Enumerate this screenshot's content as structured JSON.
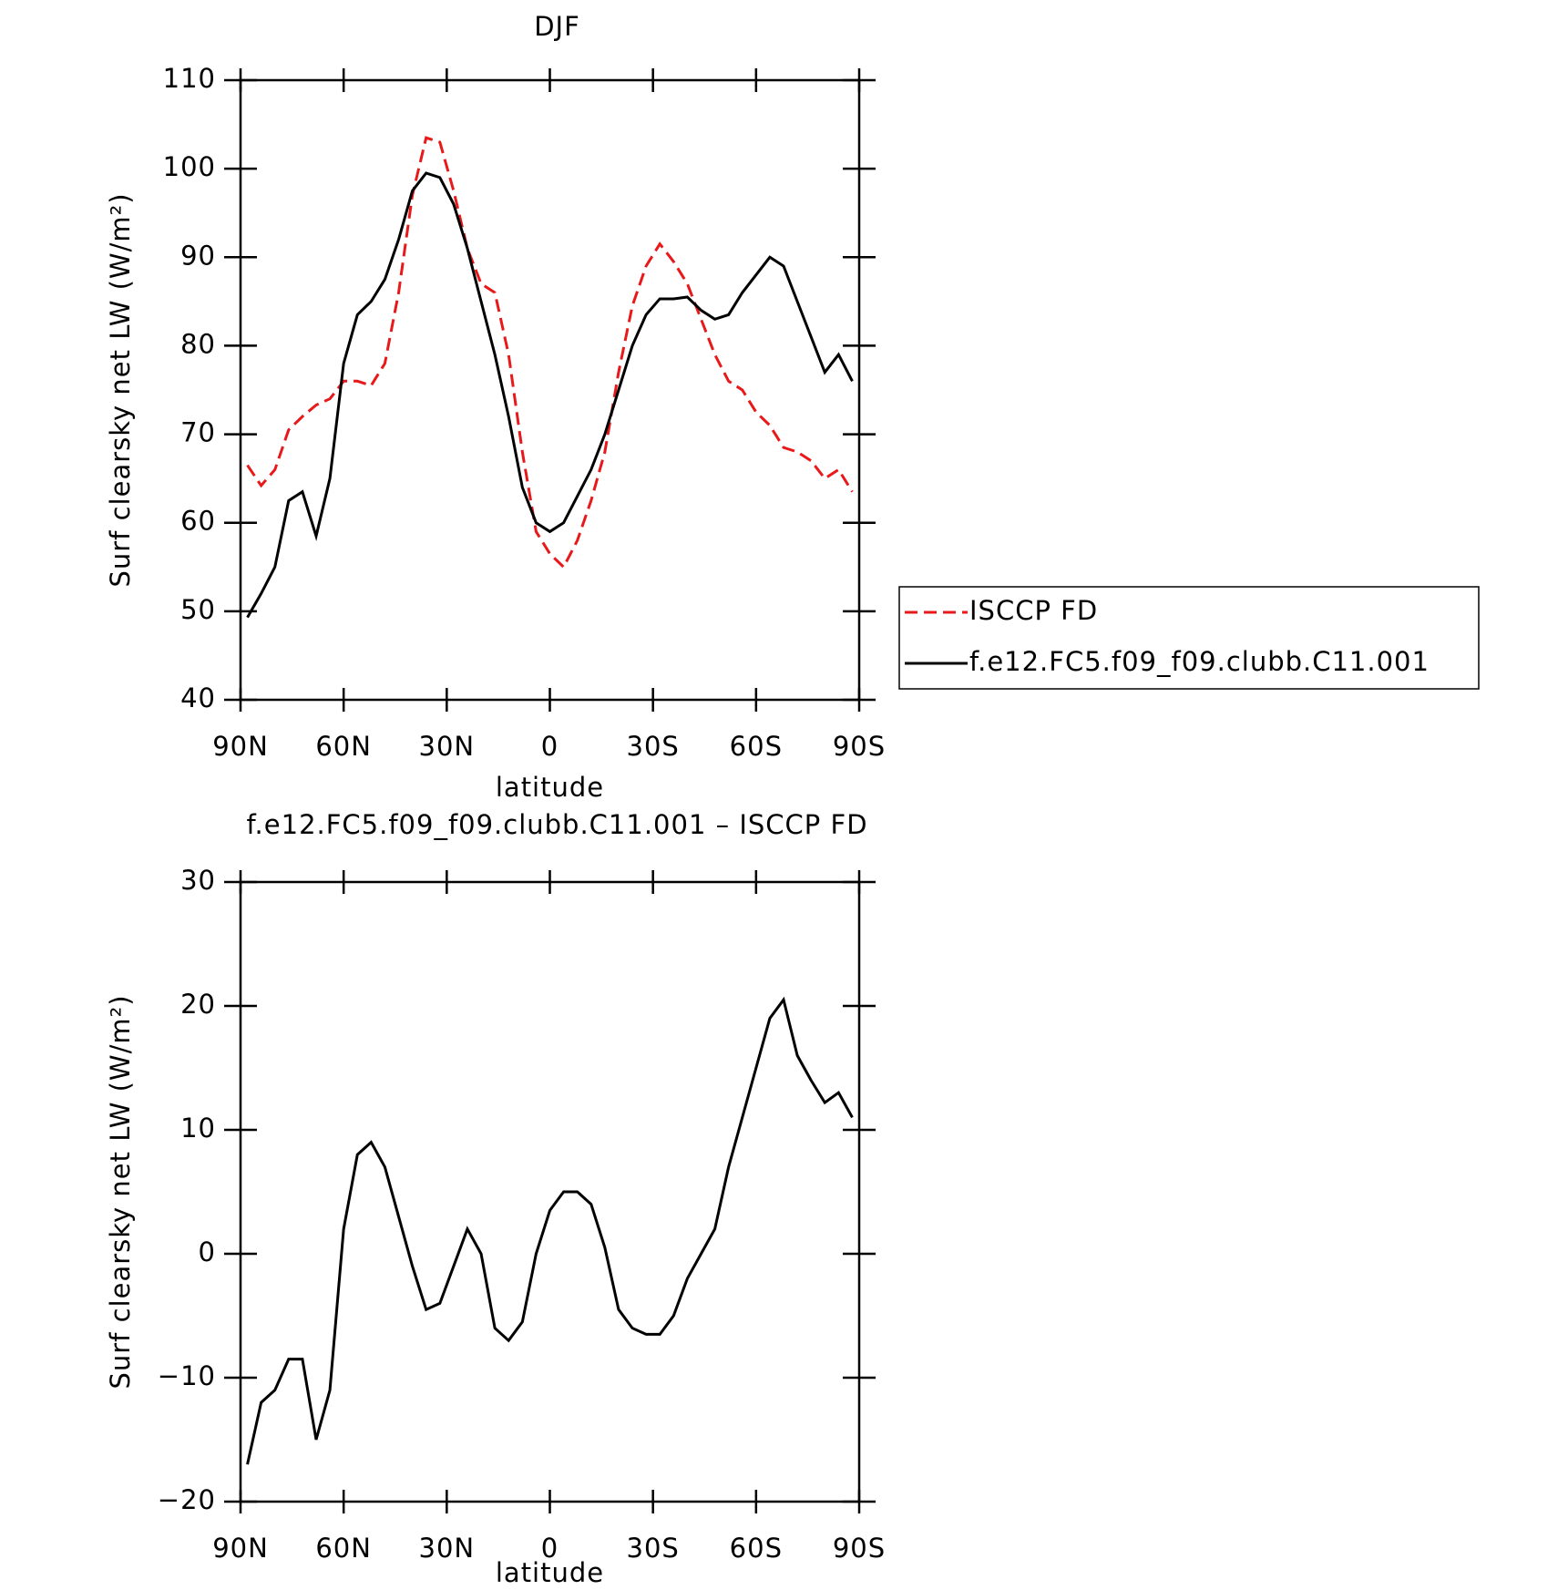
{
  "chart_data": [
    {
      "type": "line",
      "title": "DJF",
      "xlabel": "latitude",
      "ylabel": "Surf clearsky net LW (W/m²)",
      "x": [
        88,
        84,
        80,
        76,
        72,
        68,
        64,
        60,
        56,
        52,
        48,
        44,
        40,
        36,
        32,
        28,
        24,
        20,
        16,
        12,
        8,
        4,
        0,
        -4,
        -8,
        -12,
        -16,
        -20,
        -24,
        -28,
        -32,
        -36,
        -40,
        -44,
        -48,
        -52,
        -56,
        -60,
        -64,
        -68,
        -72,
        -76,
        -80,
        -84,
        -88
      ],
      "xlim": [
        90,
        -90
      ],
      "xticks": [
        {
          "value": 90,
          "label": "90N"
        },
        {
          "value": 60,
          "label": "60N"
        },
        {
          "value": 30,
          "label": "30N"
        },
        0,
        {
          "value": -30,
          "label": "30S"
        },
        {
          "value": -60,
          "label": "60S"
        },
        {
          "value": -90,
          "label": "90S"
        }
      ],
      "ylim": [
        40,
        110
      ],
      "yticks": [
        40,
        50,
        60,
        70,
        80,
        90,
        100,
        110
      ],
      "legend": "right",
      "series": [
        {
          "name": "ISCCP FD",
          "color": "#e8191a",
          "dash": true,
          "values": [
            66.5,
            64.2,
            66,
            70.5,
            72,
            73.3,
            74,
            76,
            76,
            75.5,
            78,
            86,
            97,
            103.5,
            103,
            97.5,
            91,
            87,
            86,
            79,
            68,
            59,
            56.5,
            55,
            58,
            62.5,
            68,
            77,
            84.5,
            89,
            91.5,
            89.5,
            87,
            83,
            79,
            76,
            75,
            72.5,
            71,
            68.5,
            68,
            67,
            65,
            66,
            63.5
          ]
        },
        {
          "name": "f.e12.FC5.f09_f09.clubb.C11.001",
          "color": "#000000",
          "dash": false,
          "values": [
            49.3,
            52,
            55,
            62.5,
            63.5,
            58.5,
            65,
            78,
            83.5,
            85,
            87.5,
            92,
            97.5,
            99.5,
            99,
            96,
            91,
            85,
            79,
            72,
            64,
            60,
            59,
            60,
            63,
            66,
            70,
            75,
            80,
            83.5,
            85.3,
            85.3,
            85.5,
            84,
            83,
            83.5,
            86,
            88,
            90,
            89,
            85,
            81,
            77,
            79,
            76
          ]
        }
      ]
    },
    {
      "type": "line",
      "title": "f.e12.FC5.f09_f09.clubb.C11.001 – ISCCP FD",
      "xlabel": "latitude",
      "ylabel": "Surf clearsky net LW (W/m²)",
      "x": [
        88,
        84,
        80,
        76,
        72,
        68,
        64,
        60,
        56,
        52,
        48,
        44,
        40,
        36,
        32,
        28,
        24,
        20,
        16,
        12,
        8,
        4,
        0,
        -4,
        -8,
        -12,
        -16,
        -20,
        -24,
        -28,
        -32,
        -36,
        -40,
        -44,
        -48,
        -52,
        -56,
        -60,
        -64,
        -68,
        -72,
        -76,
        -80,
        -84,
        -88
      ],
      "xlim": [
        90,
        -90
      ],
      "xticks": [
        {
          "value": 90,
          "label": "90N"
        },
        {
          "value": 60,
          "label": "60N"
        },
        {
          "value": 30,
          "label": "30N"
        },
        0,
        {
          "value": -30,
          "label": "30S"
        },
        {
          "value": -60,
          "label": "60S"
        },
        {
          "value": -90,
          "label": "90S"
        }
      ],
      "ylim": [
        -20,
        30
      ],
      "yticks": [
        {
          "value": -20,
          "label": "−20"
        },
        {
          "value": -10,
          "label": "−10"
        },
        0,
        10,
        20,
        30
      ],
      "series": [
        {
          "color": "#000000",
          "dash": false,
          "values": [
            -17,
            -12,
            -11,
            -8.5,
            -8.5,
            -15,
            -11,
            2,
            8,
            9,
            7,
            3,
            -1,
            -4.5,
            -4,
            -1,
            2,
            0,
            -6,
            -7,
            -5.5,
            0,
            3.5,
            5,
            5,
            4,
            0.5,
            -4.5,
            -6,
            -6.5,
            -6.5,
            -5,
            -2,
            0,
            2,
            7,
            11,
            15,
            19,
            20.5,
            16,
            14,
            12.2,
            13,
            11
          ]
        }
      ]
    }
  ]
}
